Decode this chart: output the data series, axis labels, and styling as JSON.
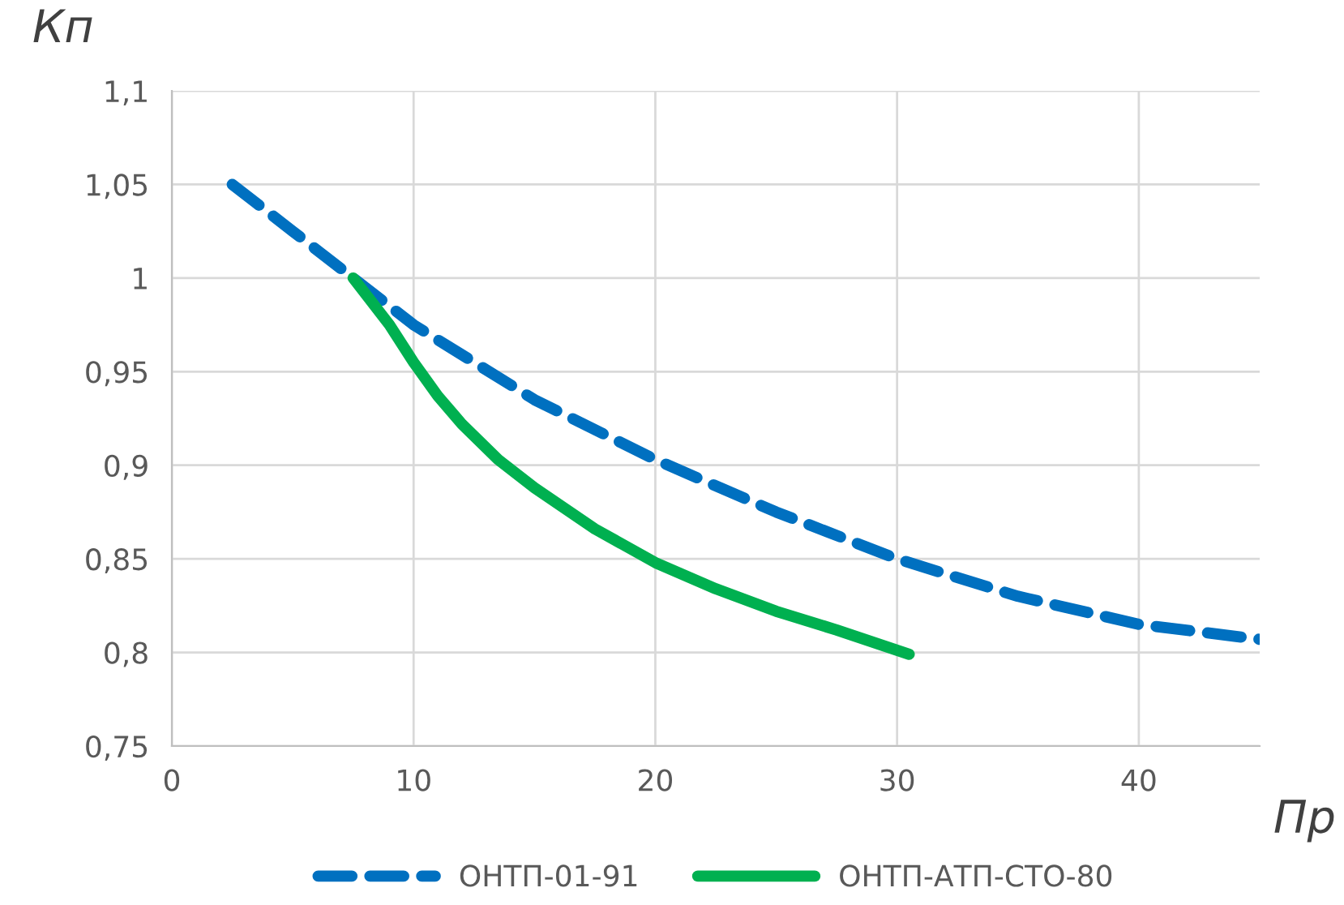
{
  "chart_data": {
    "type": "line",
    "xlabel": "Пр",
    "ylabel": "Кп",
    "series": [
      {
        "name": "ОНТП-01-91",
        "color": "#0070c0",
        "line_style": "dashed",
        "x": [
          2.5,
          5,
          7.5,
          10,
          12.5,
          15,
          20,
          25,
          30,
          35,
          40,
          45
        ],
        "values": [
          1.05,
          1.025,
          1.0,
          0.975,
          0.955,
          0.935,
          0.903,
          0.875,
          0.85,
          0.83,
          0.815,
          0.807
        ]
      },
      {
        "name": "ОНТП-АТП-СТО-80",
        "color": "#00b050",
        "line_style": "solid",
        "x": [
          7.5,
          9,
          10,
          11,
          12,
          13.5,
          15,
          17.5,
          20,
          22.5,
          25,
          27.5,
          30.5
        ],
        "values": [
          1.0,
          0.975,
          0.955,
          0.937,
          0.922,
          0.903,
          0.888,
          0.866,
          0.848,
          0.834,
          0.822,
          0.812,
          0.799
        ]
      }
    ],
    "xlim": [
      0,
      45
    ],
    "xticks": [
      0,
      10,
      20,
      30,
      40
    ],
    "ylim": [
      0.75,
      1.1
    ],
    "yticks": [
      {
        "value": 0.75,
        "label": "0,75"
      },
      {
        "value": 0.8,
        "label": "0,8"
      },
      {
        "value": 0.85,
        "label": "0,85"
      },
      {
        "value": 0.9,
        "label": "0,9"
      },
      {
        "value": 0.95,
        "label": "0,95"
      },
      {
        "value": 1.0,
        "label": "1"
      },
      {
        "value": 1.05,
        "label": "1,05"
      },
      {
        "value": 1.1,
        "label": "1,1"
      }
    ],
    "grid": true,
    "legend": "bottom",
    "marker": "none"
  }
}
